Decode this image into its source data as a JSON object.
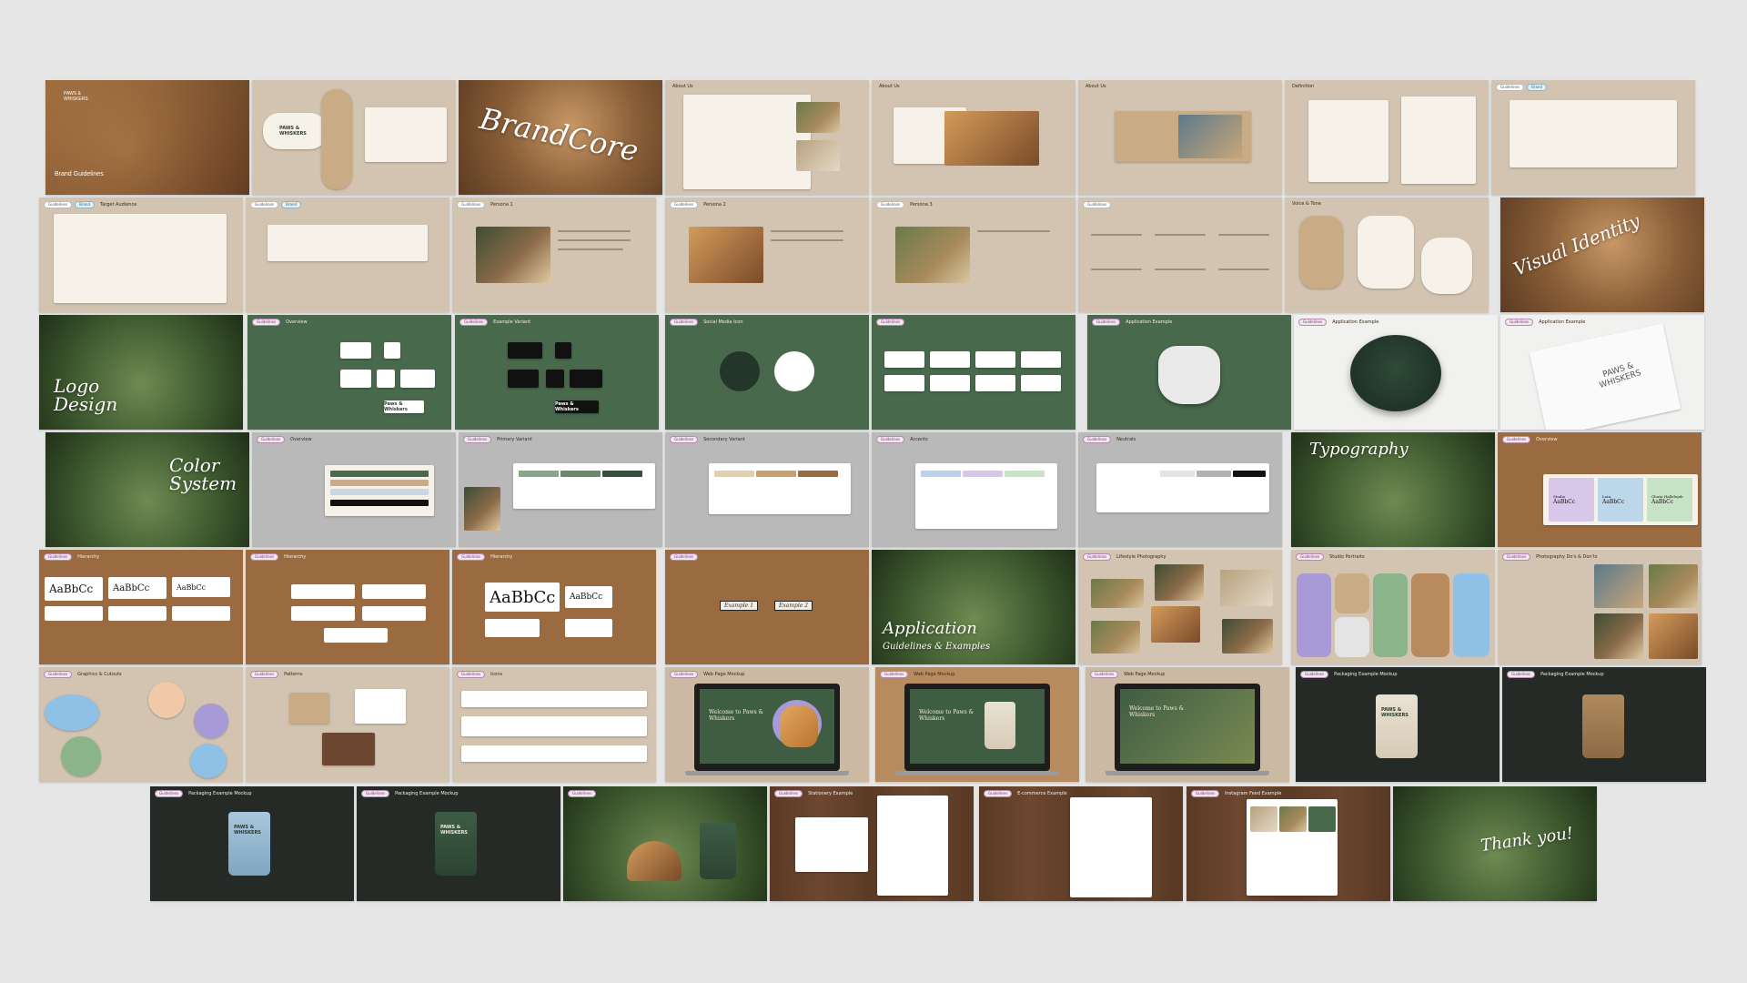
{
  "brand": {
    "name_line1": "PAWS &",
    "name_line2": "WHISKERS",
    "cover_subtitle": "Brand Guidelines",
    "wordmark_script": "Paws & Whiskers"
  },
  "section_titles": {
    "brand_core": "BrandCore",
    "visual_identity": "Visual Identity",
    "logo_design": "Logo Design",
    "color_system": "Color System",
    "typography": "Typography",
    "application_line1": "Application",
    "application_line2": "Guidelines & Examples",
    "thank_you": "Thank you!"
  },
  "slide_titles": {
    "about_us": "About Us",
    "definition": "Definition",
    "target": "Target Audience",
    "persona_1": "Persona 1",
    "persona_2": "Persona 2",
    "persona_3": "Persona 3",
    "voice": "Voice & Tone",
    "overview": "Overview",
    "example": "Example Variant",
    "social": "Social Media Icon",
    "application_example": "Application Example",
    "primary": "Primary Variant",
    "secondary": "Secondary Variant",
    "accent": "Accents",
    "neutrals": "Neutrals",
    "hierarchy": "Hierarchy",
    "graphics": "Graphics & Cutouts",
    "patterns": "Patterns",
    "icons": "Icons",
    "lifestyle": "Lifestyle Photography",
    "studio": "Studio Portraits",
    "photography": "Photography Do's & Don'ts",
    "web_mockup": "Web Page Mockup",
    "packaging": "Packaging Example Mockup",
    "stationery": "Stationery Example",
    "ecommerce": "E-commerce Example",
    "instagram": "Instagram Feed Example"
  },
  "typography_samples": {
    "sample_1": "AaBbCc",
    "sample_2": "AaBbCc",
    "sample_3": "AaBbCc",
    "sample_big": "AaBbCc",
    "card_1_name": "Studio",
    "card_2_name": "Lora",
    "card_3_name": "Gloria Hallelujah"
  },
  "buttons": {
    "example_1": "Example 1",
    "example_2": "Example 2"
  },
  "web": {
    "headline": "Welcome to Paws & Whiskers",
    "menu_label": "Paws&Whiskers"
  },
  "pouch_label": "PAWS & WHISKERS",
  "tag_labels": {
    "tag_a": "Guidelines",
    "tag_b": "Brand"
  },
  "colors": {
    "board_bg": "#e6e6e6",
    "beige": "#d3c4b1",
    "forest_green": "#49694d",
    "brown": "#9a6b40",
    "grey": "#b9b9b9",
    "accent_lilac": "#a79ad6"
  }
}
